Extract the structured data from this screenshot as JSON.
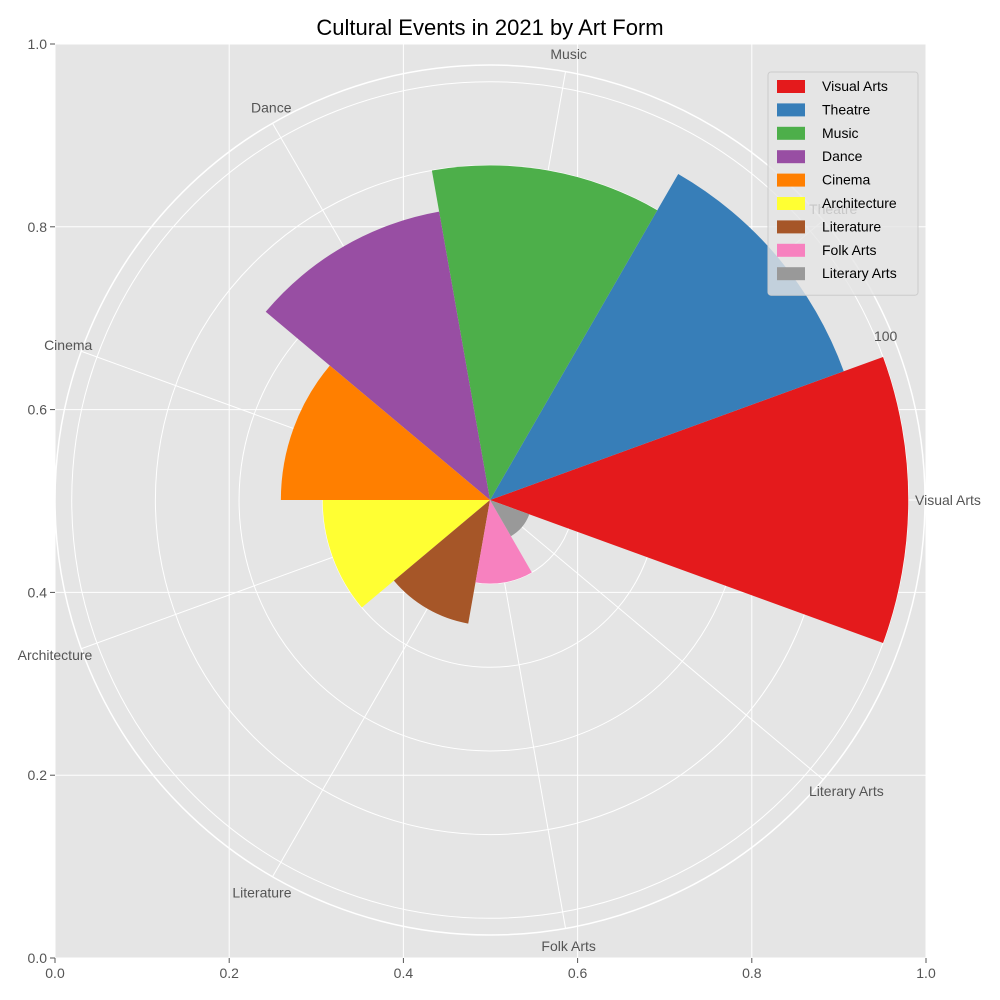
{
  "chart_data": {
    "type": "polar-bar",
    "title": "Cultural Events in 2021 by Art Form",
    "categories": [
      "Visual Arts",
      "Theatre",
      "Music",
      "Dance",
      "Cinema",
      "Architecture",
      "Literature",
      "Folk Arts",
      "Literary Arts"
    ],
    "values": [
      100,
      90,
      80,
      70,
      50,
      40,
      30,
      20,
      10
    ],
    "colors": [
      "#e41a1c",
      "#377eb8",
      "#4daf4a",
      "#984ea3",
      "#ff7f00",
      "#ffff33",
      "#a65628",
      "#f781bf",
      "#999999"
    ],
    "radial_ticks": [
      "20",
      "40",
      "60",
      "80",
      "100"
    ],
    "radial_tick_values": [
      20,
      40,
      60,
      80,
      100
    ],
    "radial_label_shown": "100",
    "rmax": 104,
    "xticks": [
      "0.0",
      "0.2",
      "0.4",
      "0.6",
      "0.8",
      "1.0"
    ],
    "yticks": [
      "0.0",
      "0.2",
      "0.4",
      "0.6",
      "0.8",
      "1.0"
    ],
    "xlim": [
      0,
      1
    ],
    "ylim": [
      0,
      1
    ],
    "grid": true,
    "legend": "top-right"
  }
}
